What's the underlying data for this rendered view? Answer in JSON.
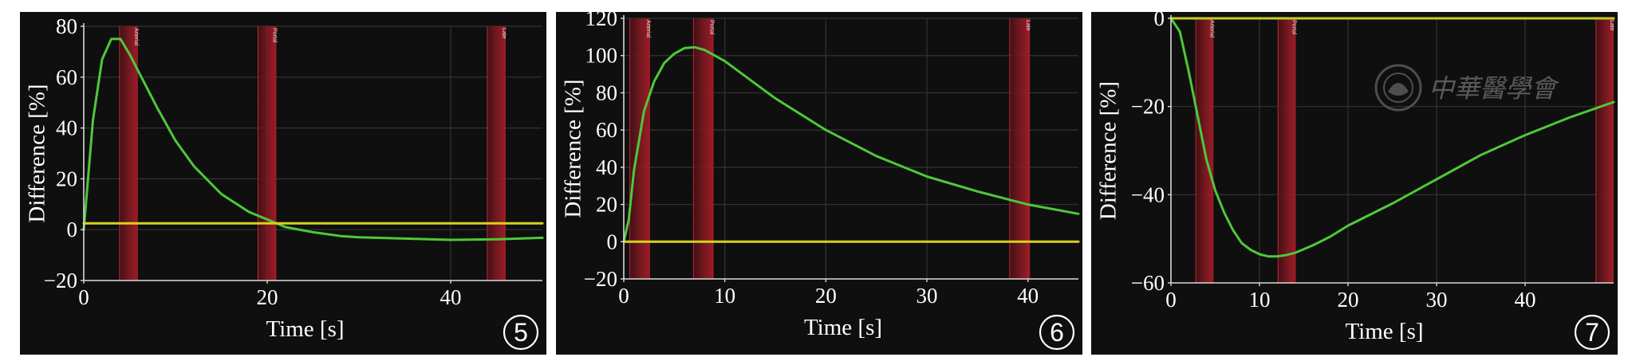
{
  "chart_data": [
    {
      "type": "line",
      "badge": "5",
      "xlabel": "Time [s]",
      "ylabel": "Difference [%]",
      "xlim": [
        0,
        50
      ],
      "ylim": [
        -20,
        80
      ],
      "xticks": [
        0,
        20,
        40
      ],
      "yticks": [
        80,
        60,
        40,
        20,
        0,
        -20
      ],
      "grid": true,
      "markers": [
        {
          "x0": 3.9,
          "x1": 5.9,
          "label": "Arterial"
        },
        {
          "x0": 19.0,
          "x1": 21.0,
          "label": "Portal"
        },
        {
          "x0": 44.0,
          "x1": 46.0,
          "label": "Late"
        }
      ],
      "series": [
        {
          "color": "#4ec83a",
          "x": [
            0,
            1,
            2,
            3,
            4,
            5,
            6,
            8,
            10,
            12,
            15,
            18,
            20,
            22,
            25,
            28,
            30,
            35,
            40,
            45,
            50
          ],
          "y": [
            0,
            43,
            67,
            75,
            75,
            69,
            62,
            48,
            35,
            25,
            14,
            7,
            4,
            1,
            -1,
            -2.5,
            -3,
            -3.5,
            -4,
            -3.8,
            -3.2
          ]
        },
        {
          "color": "#d7d21f",
          "x": [
            0,
            50
          ],
          "y": [
            2.5,
            2.5
          ]
        }
      ]
    },
    {
      "type": "line",
      "badge": "6",
      "xlabel": "Time [s]",
      "ylabel": "Difference [%]",
      "xlim": [
        0,
        45
      ],
      "ylim": [
        -20,
        120
      ],
      "xticks": [
        0,
        10,
        20,
        30,
        40
      ],
      "yticks": [
        120,
        100,
        80,
        60,
        40,
        20,
        0,
        -20
      ],
      "grid": true,
      "markers": [
        {
          "x0": 0.6,
          "x1": 2.6,
          "label": "Arterial"
        },
        {
          "x0": 6.9,
          "x1": 8.9,
          "label": "Portal"
        },
        {
          "x0": 38.2,
          "x1": 40.2,
          "label": "Late"
        }
      ],
      "series": [
        {
          "color": "#4ec83a",
          "x": [
            0,
            0.5,
            1,
            2,
            3,
            4,
            5,
            6,
            7,
            8,
            10,
            12,
            15,
            20,
            25,
            30,
            35,
            40,
            45
          ],
          "y": [
            0,
            12,
            38,
            70,
            86,
            96,
            101,
            104,
            104.5,
            103,
            97,
            89,
            77,
            60,
            46,
            35,
            27,
            20,
            15
          ]
        },
        {
          "color": "#d7d21f",
          "x": [
            0,
            45
          ],
          "y": [
            0,
            0
          ]
        }
      ]
    },
    {
      "type": "line",
      "badge": "7",
      "xlabel": "Time [s]",
      "ylabel": "Difference [%]",
      "xlim": [
        0,
        50
      ],
      "ylim": [
        -60,
        0
      ],
      "xticks": [
        0,
        10,
        20,
        30,
        40
      ],
      "yticks": [
        0,
        -20,
        -40,
        -60
      ],
      "grid": true,
      "markers": [
        {
          "x0": 2.8,
          "x1": 4.8,
          "label": "Arterial"
        },
        {
          "x0": 12.1,
          "x1": 14.1,
          "label": "Portal"
        },
        {
          "x0": 48.0,
          "x1": 50.0,
          "label": "Late"
        }
      ],
      "watermark": {
        "text": "中華醫學會"
      },
      "series": [
        {
          "color": "#4ec83a",
          "x": [
            0,
            1,
            2,
            3,
            4,
            5,
            6,
            7,
            8,
            9,
            10,
            11,
            12,
            13,
            14,
            16,
            18,
            20,
            25,
            30,
            35,
            40,
            45,
            50
          ],
          "y": [
            0,
            -3,
            -12,
            -22,
            -32,
            -39,
            -44,
            -48,
            -51,
            -52.5,
            -53.5,
            -54,
            -54,
            -53.7,
            -53.2,
            -51.5,
            -49.5,
            -47,
            -42,
            -36.5,
            -31,
            -26.5,
            -22.5,
            -19
          ]
        },
        {
          "color": "#c4cc26",
          "x": [
            0,
            50
          ],
          "y": [
            0,
            0
          ]
        }
      ]
    }
  ]
}
